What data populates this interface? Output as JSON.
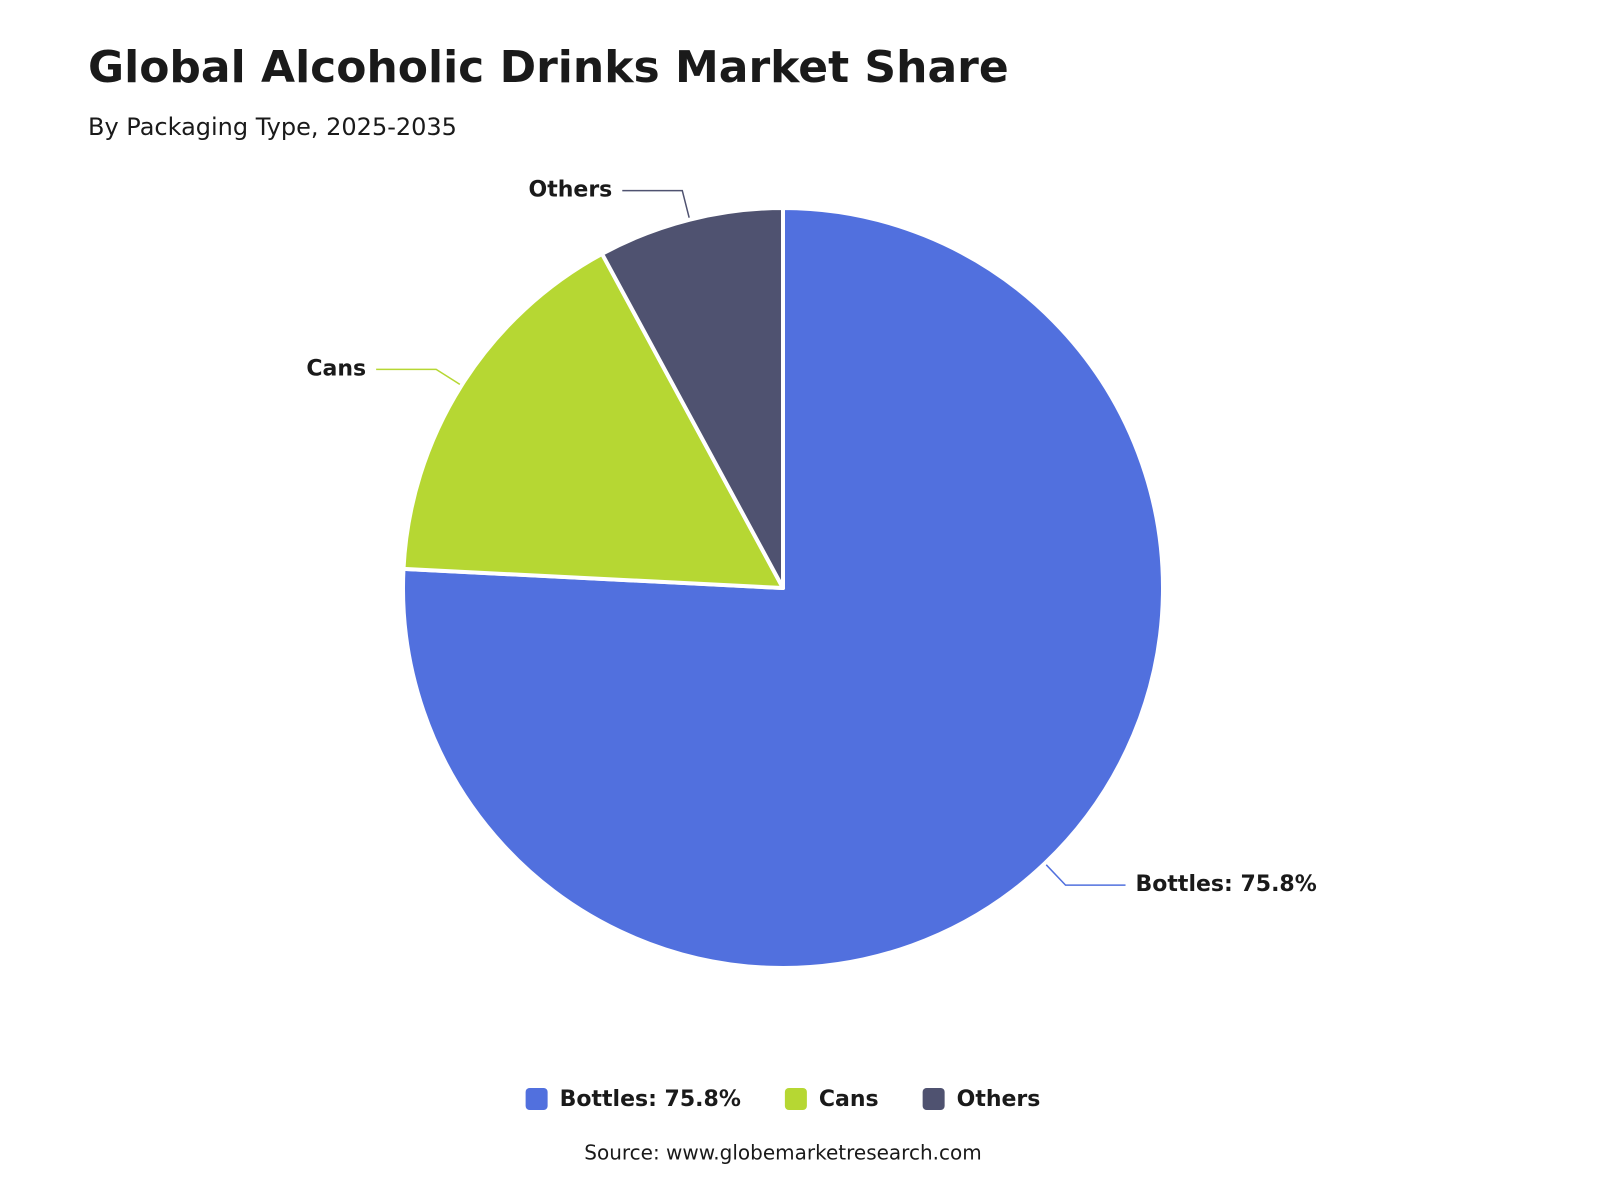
{
  "chart_data": {
    "type": "pie",
    "title": "Global Alcoholic Drinks Market Share",
    "subtitle": "By Packaging Type, 2025-2035",
    "source": "Source: www.globemarketresearch.com",
    "categories": [
      "Bottles: 75.8%",
      "Cans",
      "Others"
    ],
    "values": [
      75.8,
      16.3,
      7.9
    ],
    "colors": [
      "#5170de",
      "#b6d733",
      "#4f5270"
    ]
  }
}
